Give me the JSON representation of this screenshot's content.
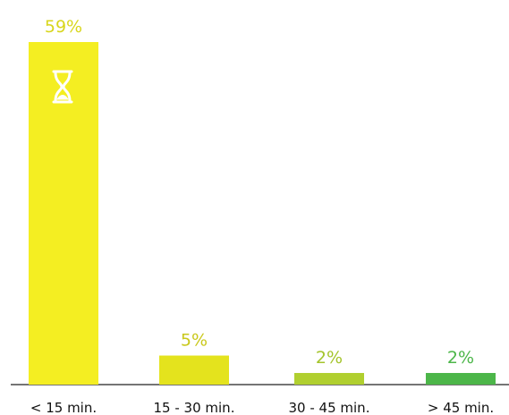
{
  "chart_data": {
    "type": "bar",
    "categories": [
      "< 15 min.",
      "15 - 30 min.",
      "30 - 45 min.",
      "> 45 min."
    ],
    "values": [
      59,
      5,
      2,
      2
    ],
    "value_labels": [
      "59%",
      "5%",
      "2%",
      "2%"
    ],
    "colors": [
      "#f4ee22",
      "#e4e31d",
      "#b0cf2f",
      "#4cb649"
    ],
    "label_colors": [
      "#d8d61c",
      "#c9c81a",
      "#a4c42b",
      "#4cb649"
    ],
    "title": "",
    "xlabel": "",
    "ylabel": "",
    "ylim": [
      0,
      59
    ],
    "grid": false,
    "legend": "none",
    "icon": "hourglass-icon"
  }
}
